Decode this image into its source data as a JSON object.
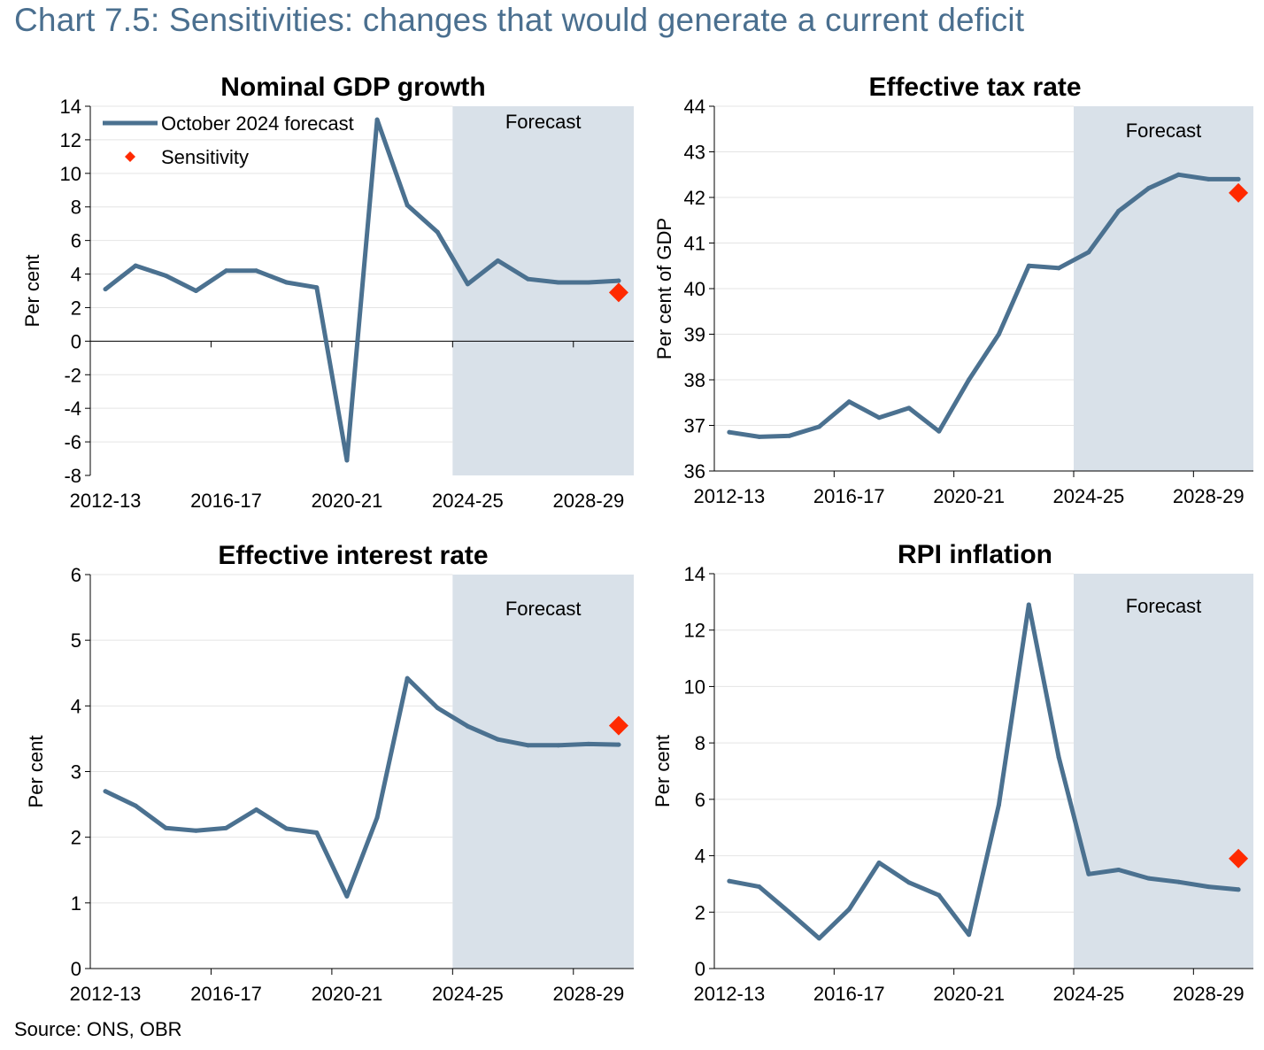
{
  "title": "Chart 7.5: Sensitivities: changes that would generate a current deficit",
  "source": "Source: ONS, OBR",
  "colors": {
    "series": "#4b7190",
    "forecast_band": "#d9e1e9",
    "sensitivity": "#ff2a00",
    "grid": "#e4e4e4",
    "title": "#4a6f8f"
  },
  "legend": {
    "series_label": "October 2024 forecast",
    "sensitivity_label": "Sensitivity"
  },
  "chart_data": [
    {
      "type": "line",
      "title": "Nominal GDP growth",
      "ylabel": "Per cent",
      "ylim": [
        -8,
        14
      ],
      "yticks": [
        -8,
        -6,
        -4,
        -2,
        0,
        2,
        4,
        6,
        8,
        10,
        12,
        14
      ],
      "x_tick_labels": [
        "2012-13",
        "2016-17",
        "2020-21",
        "2024-25",
        "2028-29"
      ],
      "x_tick_index": [
        0,
        4,
        8,
        12,
        16
      ],
      "forecast_label": "Forecast",
      "forecast_start_index": 12,
      "legend_shown": true,
      "series": [
        {
          "name": "October 2024 forecast",
          "values": [
            3.1,
            4.5,
            3.9,
            3.0,
            4.2,
            4.2,
            3.5,
            3.2,
            -7.1,
            13.2,
            8.1,
            6.5,
            3.4,
            4.8,
            3.7,
            3.5,
            3.5,
            3.6
          ]
        },
        {
          "name": "Sensitivity",
          "points": [
            {
              "index": 17,
              "value": 2.9
            }
          ]
        }
      ]
    },
    {
      "type": "line",
      "title": "Effective tax rate",
      "ylabel": "Per cent of GDP",
      "ylim": [
        36,
        44
      ],
      "yticks": [
        36,
        37,
        38,
        39,
        40,
        41,
        42,
        43,
        44
      ],
      "x_tick_labels": [
        "2012-13",
        "2016-17",
        "2020-21",
        "2024-25",
        "2028-29"
      ],
      "x_tick_index": [
        0,
        4,
        8,
        12,
        16
      ],
      "forecast_label": "Forecast",
      "forecast_start_index": 12,
      "legend_shown": false,
      "series": [
        {
          "name": "October 2024 forecast",
          "values": [
            36.85,
            36.75,
            36.77,
            36.97,
            37.52,
            37.17,
            37.38,
            36.87,
            38.0,
            39.0,
            40.5,
            40.45,
            40.8,
            41.7,
            42.2,
            42.5,
            42.4,
            42.4
          ]
        },
        {
          "name": "Sensitivity",
          "points": [
            {
              "index": 17,
              "value": 42.1
            }
          ]
        }
      ]
    },
    {
      "type": "line",
      "title": "Effective interest rate",
      "ylabel": "Per cent",
      "ylim": [
        0,
        6
      ],
      "yticks": [
        0,
        1,
        2,
        3,
        4,
        5,
        6
      ],
      "x_tick_labels": [
        "2012-13",
        "2016-17",
        "2020-21",
        "2024-25",
        "2028-29"
      ],
      "x_tick_index": [
        0,
        4,
        8,
        12,
        16
      ],
      "forecast_label": "Forecast",
      "forecast_start_index": 12,
      "legend_shown": false,
      "series": [
        {
          "name": "October 2024 forecast",
          "values": [
            2.7,
            2.48,
            2.14,
            2.1,
            2.14,
            2.42,
            2.13,
            2.07,
            1.1,
            2.3,
            4.42,
            3.97,
            3.69,
            3.49,
            3.4,
            3.4,
            3.42,
            3.41
          ]
        },
        {
          "name": "Sensitivity",
          "points": [
            {
              "index": 17,
              "value": 3.7
            }
          ]
        }
      ]
    },
    {
      "type": "line",
      "title": "RPI inflation",
      "ylabel": "Per cent",
      "ylim": [
        0,
        14
      ],
      "yticks": [
        0,
        2,
        4,
        6,
        8,
        10,
        12,
        14
      ],
      "x_tick_labels": [
        "2012-13",
        "2016-17",
        "2020-21",
        "2024-25",
        "2028-29"
      ],
      "x_tick_index": [
        0,
        4,
        8,
        12,
        16
      ],
      "forecast_label": "Forecast",
      "forecast_start_index": 12,
      "legend_shown": false,
      "series": [
        {
          "name": "October 2024 forecast",
          "values": [
            3.1,
            2.9,
            2.0,
            1.07,
            2.1,
            3.75,
            3.05,
            2.6,
            1.2,
            5.8,
            12.9,
            7.5,
            3.35,
            3.5,
            3.2,
            3.07,
            2.9,
            2.8
          ]
        },
        {
          "name": "Sensitivity",
          "points": [
            {
              "index": 17,
              "value": 3.9
            }
          ]
        }
      ]
    }
  ]
}
